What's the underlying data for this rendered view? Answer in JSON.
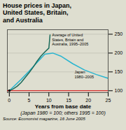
{
  "chart_data": {
    "type": "line",
    "title": "House prices in Japan,\nUnited States, Britain,\nand Australia",
    "xlabel": "Years from base date",
    "subtitle": "(Japan 1980 = 100; others 1995 = 100)",
    "source": "Source: Economist magazine, 16 June 2005",
    "background": "#deded0",
    "xlim": [
      -0.5,
      25
    ],
    "xticks": [
      0,
      5,
      10,
      15,
      20,
      25
    ],
    "ylim": [
      95,
      262
    ],
    "yticks": [
      100,
      150,
      200,
      250
    ],
    "grid": true,
    "series": [
      {
        "name": "Japan\n1980–2005",
        "color": "#2ab5d0",
        "x": [
          0,
          3,
          5,
          7,
          9,
          11,
          13,
          16,
          19,
          22,
          25
        ],
        "values": [
          100,
          130,
          152,
          175,
          197,
          200,
          192,
          172,
          155,
          143,
          133
        ]
      },
      {
        "name": "Average of United\nStates, Britain and\nAustralia, 1995–2005",
        "color": "#1a6b5a",
        "x": [
          0,
          1,
          2,
          3,
          4,
          5,
          6,
          7,
          8,
          9,
          10,
          10.3
        ],
        "values": [
          100,
          105,
          112,
          122,
          135,
          148,
          162,
          178,
          192,
          203,
          213,
          248
        ]
      }
    ],
    "reference_lines": [
      {
        "y": 100,
        "color": "#dd0000"
      }
    ],
    "points": [
      {
        "x": 0,
        "y": 100,
        "color": "#000000"
      }
    ],
    "annotations": [
      {
        "text": "Average of United\nStates, Britain and\nAustralia, 1995–2005",
        "x": 10.8,
        "y": 252
      },
      {
        "text": "Japan\n1980–2005",
        "x": 16.5,
        "y": 154
      }
    ]
  }
}
